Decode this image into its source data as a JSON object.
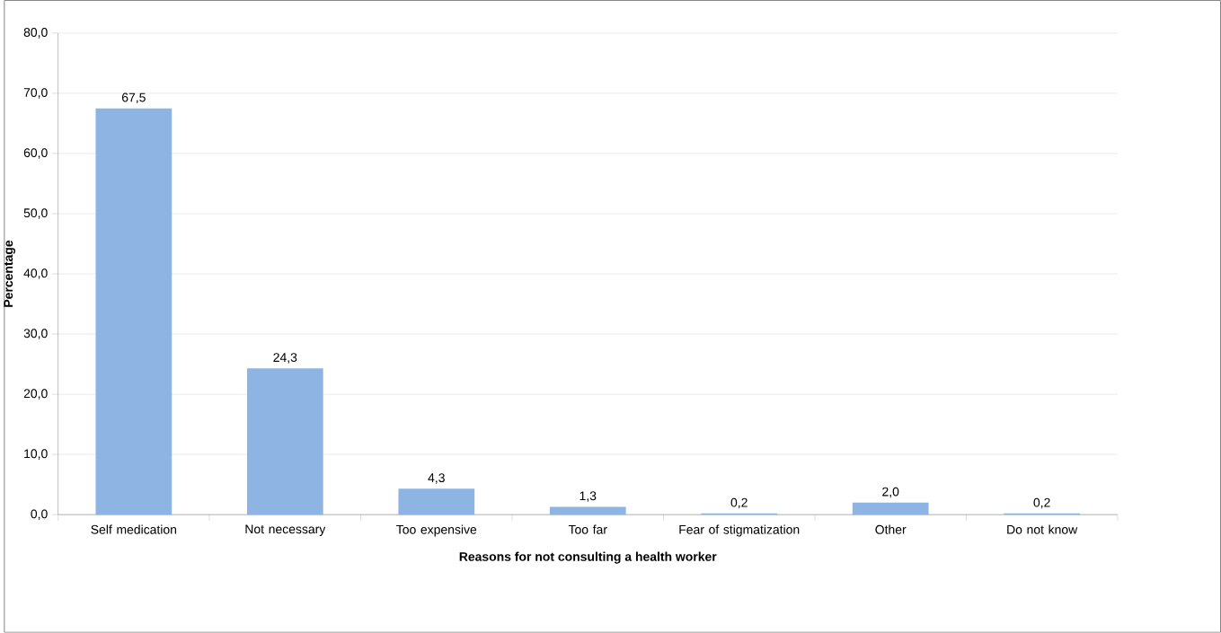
{
  "chart_data": {
    "type": "bar",
    "xlabel": "Reasons for not consulting a health worker",
    "ylabel": "Percentage",
    "categories": [
      "Self medication",
      "Not necessary",
      "Too  expensive",
      "Too far",
      "Fear of stigmatization",
      "Other",
      "Do not know"
    ],
    "values": [
      67.5,
      24.3,
      4.3,
      1.3,
      0.2,
      2.0,
      0.2
    ],
    "value_labels": [
      "67,5",
      "24,3",
      "4,3",
      "1,3",
      "0,2",
      "2,0",
      "0,2"
    ],
    "color": "#8eb4e3",
    "ylim": [
      0,
      80
    ],
    "yticks": [
      {
        "value": 0,
        "label": "0,0"
      },
      {
        "value": 10,
        "label": "10,0"
      },
      {
        "value": 20,
        "label": "20,0"
      },
      {
        "value": 30,
        "label": "30,0"
      },
      {
        "value": 40,
        "label": "40,0"
      },
      {
        "value": 50,
        "label": "50,0"
      },
      {
        "value": 60,
        "label": "60,0"
      },
      {
        "value": 70,
        "label": "70,0"
      },
      {
        "value": 80,
        "label": "80,0"
      }
    ],
    "grid": "y"
  }
}
